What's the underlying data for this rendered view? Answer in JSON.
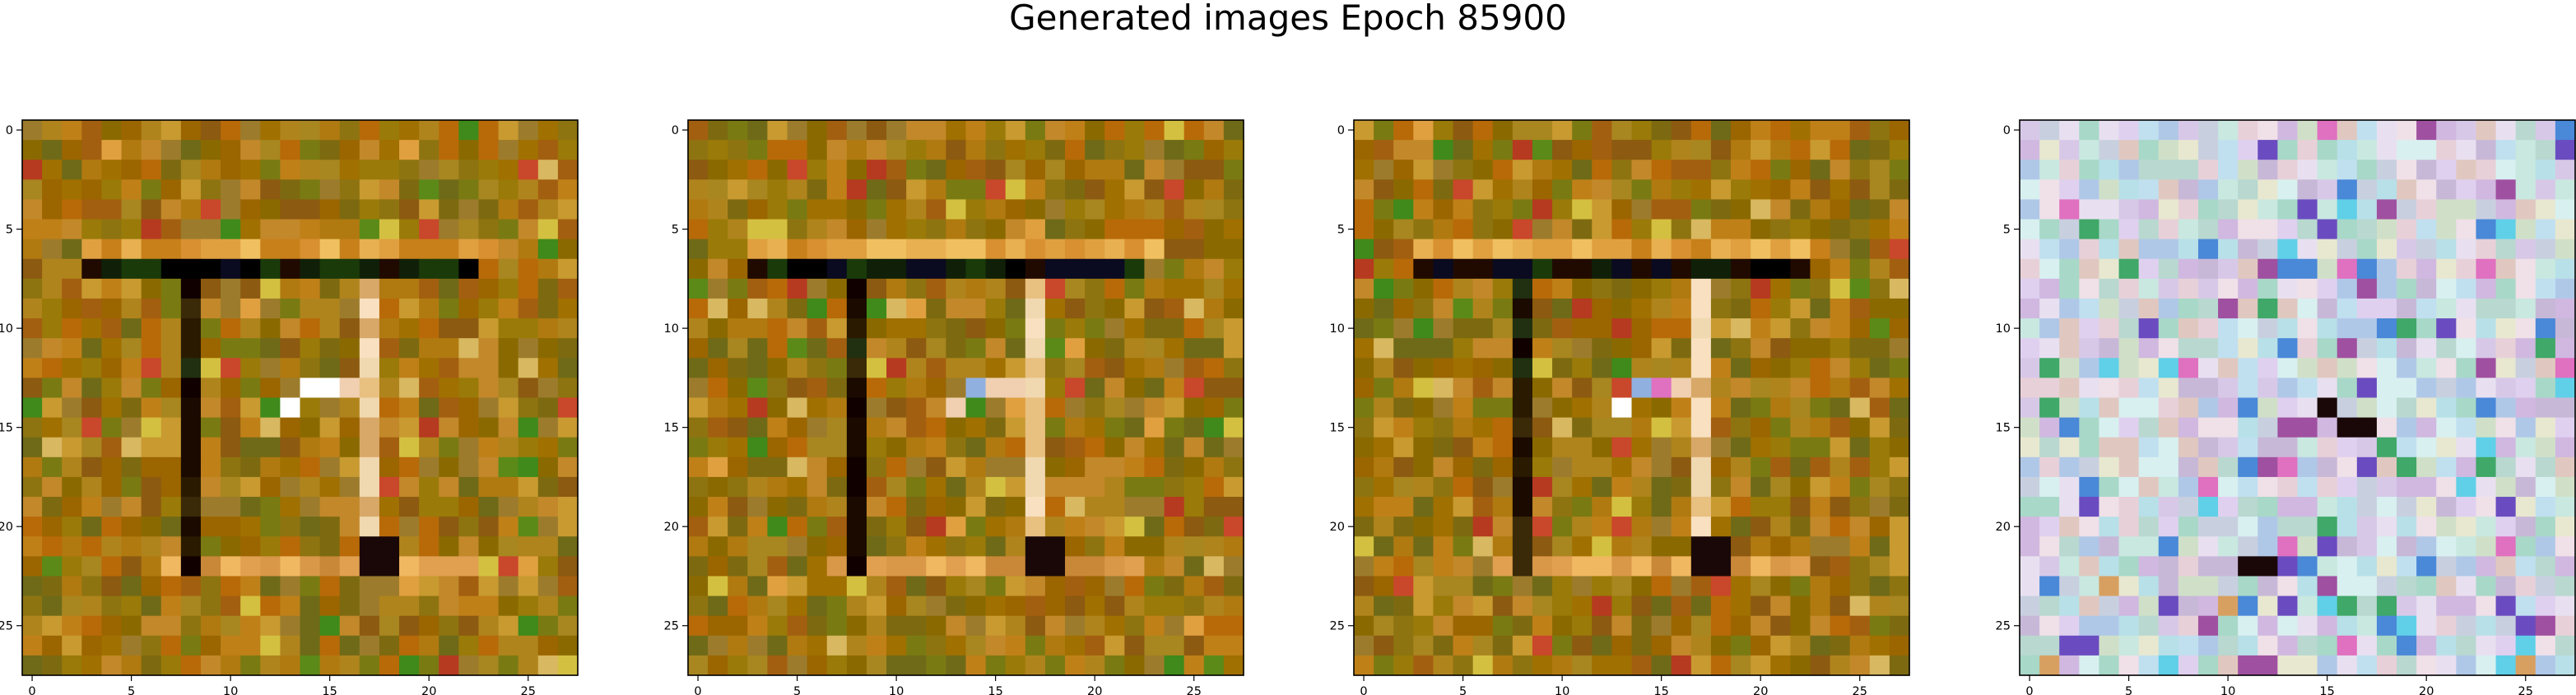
{
  "title": "Generated images Epoch 85900",
  "chart_data": [
    {
      "type": "heatmap",
      "grid_size": 28,
      "palette": "warm",
      "x_ticks": [
        "0",
        "5",
        "10",
        "15",
        "20",
        "25"
      ],
      "y_ticks": [
        "0",
        "5",
        "10",
        "15",
        "20",
        "25"
      ],
      "xlim": [
        -0.5,
        27.5
      ],
      "ylim": [
        27.5,
        -0.5
      ],
      "grid": false,
      "features": {
        "dark_row": {
          "y": 7,
          "x_from": 3,
          "x_to": 22
        },
        "light_row": {
          "y": 6,
          "x_from": 3,
          "x_to": 23
        },
        "dark_col": {
          "x": 8,
          "y_from": 7,
          "y_to": 22
        },
        "light_col": {
          "x": 17,
          "y_from": 8,
          "y_to": 21
        },
        "bottom_row": {
          "y": 22,
          "x_from": 7,
          "x_to": 22
        },
        "dark_cells": [
          [
            17,
            21
          ],
          [
            18,
            21
          ],
          [
            18,
            22
          ],
          [
            17,
            22
          ]
        ],
        "bright_cells": [
          [
            15,
            13
          ],
          [
            16,
            13
          ],
          [
            14,
            13
          ],
          [
            13,
            14
          ]
        ]
      }
    },
    {
      "type": "heatmap",
      "grid_size": 28,
      "palette": "warm",
      "x_ticks": [
        "0",
        "5",
        "10",
        "15",
        "20",
        "25"
      ],
      "y_ticks": [
        "0",
        "5",
        "10",
        "15",
        "20",
        "25"
      ],
      "xlim": [
        -0.5,
        27.5
      ],
      "ylim": [
        27.5,
        -0.5
      ],
      "grid": false,
      "features": {
        "dark_row": {
          "y": 7,
          "x_from": 3,
          "x_to": 22
        },
        "light_row": {
          "y": 6,
          "x_from": 3,
          "x_to": 23
        },
        "dark_col": {
          "x": 8,
          "y_from": 7,
          "y_to": 22
        },
        "light_col": {
          "x": 17,
          "y_from": 8,
          "y_to": 21
        },
        "bottom_row": {
          "y": 22,
          "x_from": 7,
          "x_to": 22
        },
        "dark_cells": [
          [
            17,
            21
          ],
          [
            18,
            21
          ],
          [
            18,
            22
          ],
          [
            17,
            22
          ]
        ],
        "bright_cells": [
          [
            15,
            13
          ],
          [
            16,
            13
          ],
          [
            14,
            13
          ],
          [
            13,
            14
          ]
        ]
      }
    },
    {
      "type": "heatmap",
      "grid_size": 28,
      "palette": "warm",
      "x_ticks": [
        "0",
        "5",
        "10",
        "15",
        "20",
        "25"
      ],
      "y_ticks": [
        "0",
        "5",
        "10",
        "15",
        "20",
        "25"
      ],
      "xlim": [
        -0.5,
        27.5
      ],
      "ylim": [
        27.5,
        -0.5
      ],
      "grid": false,
      "features": {
        "dark_row": {
          "y": 7,
          "x_from": 3,
          "x_to": 22
        },
        "light_row": {
          "y": 6,
          "x_from": 3,
          "x_to": 23
        },
        "dark_col": {
          "x": 8,
          "y_from": 7,
          "y_to": 22
        },
        "light_col": {
          "x": 17,
          "y_from": 8,
          "y_to": 21
        },
        "bottom_row": {
          "y": 22,
          "x_from": 7,
          "x_to": 22
        },
        "dark_cells": [
          [
            17,
            21
          ],
          [
            18,
            21
          ],
          [
            18,
            22
          ],
          [
            17,
            22
          ]
        ],
        "bright_cells": [
          [
            15,
            13
          ],
          [
            16,
            13
          ],
          [
            14,
            13
          ],
          [
            13,
            14
          ]
        ]
      }
    },
    {
      "type": "heatmap",
      "grid_size": 28,
      "palette": "pastel",
      "x_ticks": [
        "0",
        "5",
        "10",
        "15",
        "20",
        "25"
      ],
      "y_ticks": [
        "0",
        "5",
        "10",
        "15",
        "20",
        "25"
      ],
      "xlim": [
        -0.5,
        27.5
      ],
      "ylim": [
        27.5,
        -0.5
      ],
      "grid": false,
      "features": {
        "dark_cells": [
          [
            16,
            15
          ],
          [
            17,
            15
          ],
          [
            15,
            14
          ],
          [
            11,
            22
          ],
          [
            12,
            22
          ]
        ]
      }
    }
  ]
}
